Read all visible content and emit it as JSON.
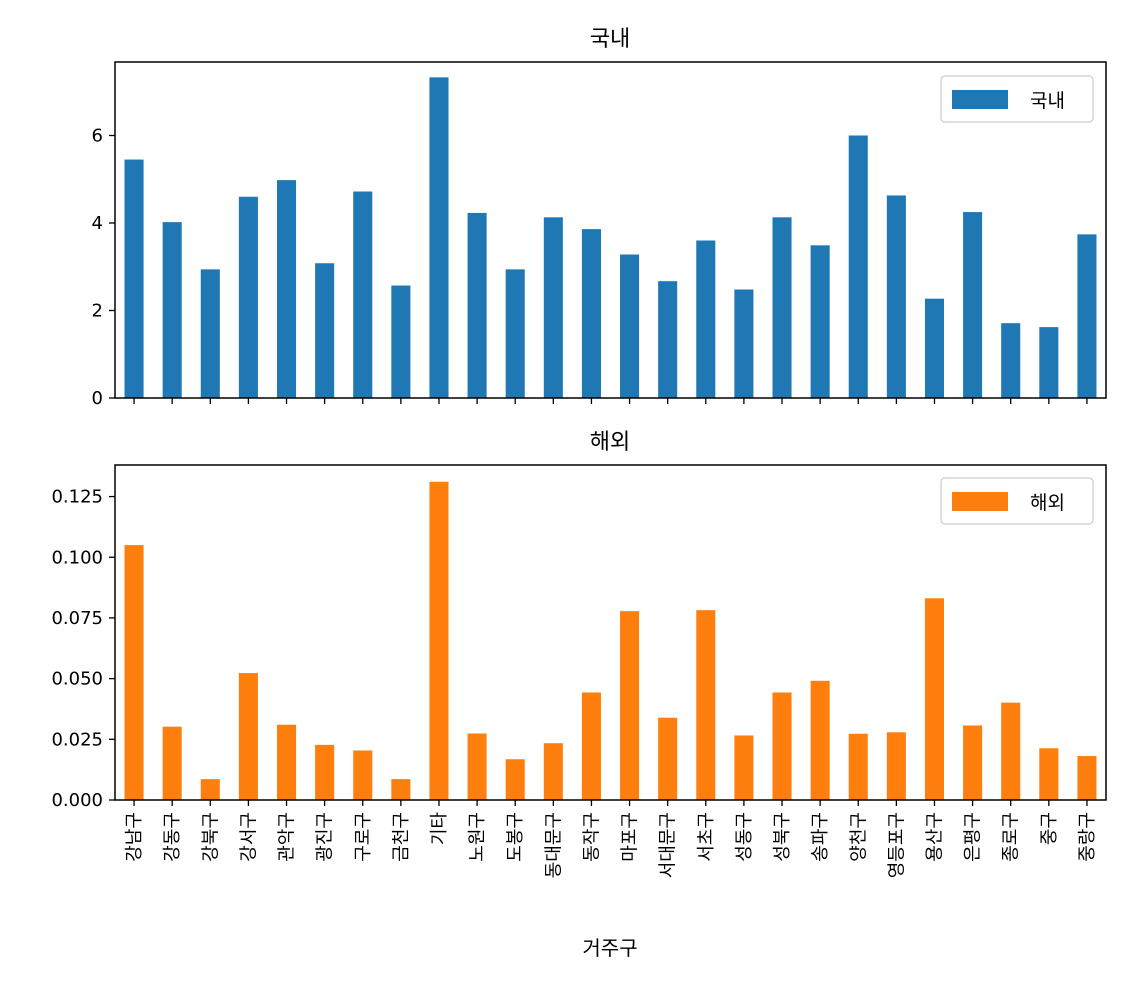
{
  "chart_data": [
    {
      "type": "bar",
      "title": "국내",
      "xlabel": "",
      "ylabel": "",
      "ylim": [
        0,
        7.68
      ],
      "yticks": [
        0,
        2,
        4,
        6
      ],
      "ytick_labels": [
        "0",
        "2",
        "4",
        "6"
      ],
      "legend": {
        "label": "국내",
        "position": "upper right"
      },
      "color": "#1f77b4",
      "values": [
        5.45,
        4.02,
        2.94,
        4.6,
        4.98,
        3.08,
        4.72,
        2.57,
        7.33,
        4.23,
        2.94,
        4.13,
        3.86,
        3.28,
        2.67,
        3.6,
        2.48,
        4.13,
        3.49,
        6.0,
        4.63,
        2.27,
        4.25,
        1.71,
        1.62,
        3.74
      ]
    },
    {
      "type": "bar",
      "title": "해외",
      "xlabel": "거주구",
      "ylabel": "",
      "ylim": [
        0,
        0.138
      ],
      "yticks": [
        0,
        0.025,
        0.05,
        0.075,
        0.1,
        0.125
      ],
      "ytick_labels": [
        "0.000",
        "0.025",
        "0.050",
        "0.075",
        "0.100",
        "0.125"
      ],
      "legend": {
        "label": "해외",
        "position": "upper right"
      },
      "color": "#ff7f0e",
      "values": [
        0.105,
        0.0302,
        0.0086,
        0.0523,
        0.031,
        0.0227,
        0.0204,
        0.0086,
        0.1311,
        0.0274,
        0.0168,
        0.0234,
        0.0443,
        0.0778,
        0.0339,
        0.0782,
        0.0266,
        0.0443,
        0.0491,
        0.0273,
        0.0279,
        0.0831,
        0.0307,
        0.0401,
        0.0213,
        0.0181
      ]
    }
  ],
  "categories": [
    "강남구",
    "강동구",
    "강북구",
    "강서구",
    "관악구",
    "광진구",
    "구로구",
    "금천구",
    "기타",
    "노원구",
    "도봉구",
    "동대문구",
    "동작구",
    "마포구",
    "서대문구",
    "서초구",
    "성동구",
    "성북구",
    "송파구",
    "양천구",
    "영등포구",
    "용산구",
    "은평구",
    "종로구",
    "중구",
    "중랑구"
  ]
}
